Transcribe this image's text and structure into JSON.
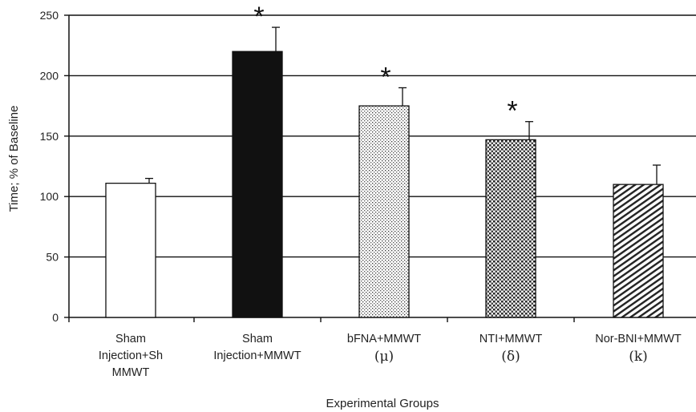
{
  "chart_data": {
    "type": "bar",
    "title": "",
    "xlabel": "Experimental Groups",
    "ylabel": "Time; % of Baseline",
    "ylim": [
      0,
      250
    ],
    "yticks": [
      0,
      50,
      100,
      150,
      200,
      250
    ],
    "grid": true,
    "categories": [
      {
        "lines": [
          "Sham",
          "Injection+Sh",
          "MMWT"
        ],
        "symbol": ""
      },
      {
        "lines": [
          "Sham",
          "Injection+MMWT"
        ],
        "symbol": ""
      },
      {
        "lines": [
          "bFNA+MMWT"
        ],
        "symbol": "(μ)"
      },
      {
        "lines": [
          "NTI+MMWT"
        ],
        "symbol": "(δ)"
      },
      {
        "lines": [
          "Nor-BNI+MMWT"
        ],
        "symbol": "(k)"
      }
    ],
    "values": [
      111,
      220,
      175,
      147,
      110
    ],
    "errors": [
      4,
      20,
      15,
      15,
      16
    ],
    "significance": [
      "",
      "*",
      "*",
      "*",
      ""
    ],
    "fills": [
      "white",
      "black",
      "dots",
      "checker",
      "diagonal"
    ]
  }
}
